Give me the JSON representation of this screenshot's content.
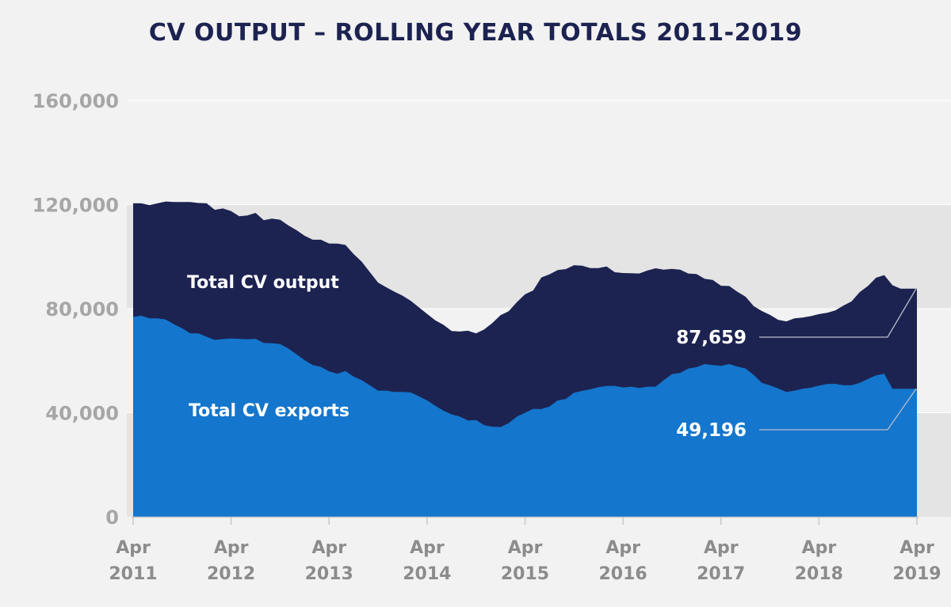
{
  "chart_data": {
    "type": "area",
    "title": "CV OUTPUT – ROLLING YEAR TOTALS 2011-2019",
    "xlabel": "",
    "ylabel": "",
    "ylim": [
      0,
      160000
    ],
    "yticks": [
      0,
      40000,
      80000,
      120000,
      160000
    ],
    "ytick_labels": [
      "0",
      "40,000",
      "80,000",
      "120,000",
      "160,000"
    ],
    "xlim": [
      "2011-04",
      "2019-04"
    ],
    "xticks": [
      {
        "pos": "2011-04",
        "line1": "Apr",
        "line2": "2011"
      },
      {
        "pos": "2012-04",
        "line1": "Apr",
        "line2": "2012"
      },
      {
        "pos": "2013-04",
        "line1": "Apr",
        "line2": "2013"
      },
      {
        "pos": "2014-04",
        "line1": "Apr",
        "line2": "2014"
      },
      {
        "pos": "2015-04",
        "line1": "Apr",
        "line2": "2015"
      },
      {
        "pos": "2016-04",
        "line1": "Apr",
        "line2": "2016"
      },
      {
        "pos": "2017-04",
        "line1": "Apr",
        "line2": "2017"
      },
      {
        "pos": "2018-04",
        "line1": "Apr",
        "line2": "2018"
      },
      {
        "pos": "2019-04",
        "line1": "Apr",
        "line2": "2019"
      }
    ],
    "x": [
      "2011-04",
      "2011-05",
      "2011-06",
      "2011-07",
      "2011-08",
      "2011-09",
      "2011-10",
      "2011-11",
      "2011-12",
      "2012-01",
      "2012-02",
      "2012-03",
      "2012-04",
      "2012-05",
      "2012-06",
      "2012-07",
      "2012-08",
      "2012-09",
      "2012-10",
      "2012-11",
      "2012-12",
      "2013-01",
      "2013-02",
      "2013-03",
      "2013-04",
      "2013-05",
      "2013-06",
      "2013-07",
      "2013-08",
      "2013-09",
      "2013-10",
      "2013-11",
      "2013-12",
      "2014-01",
      "2014-02",
      "2014-03",
      "2014-04",
      "2014-05",
      "2014-06",
      "2014-07",
      "2014-08",
      "2014-09",
      "2014-10",
      "2014-11",
      "2014-12",
      "2015-01",
      "2015-02",
      "2015-03",
      "2015-04",
      "2015-05",
      "2015-06",
      "2015-07",
      "2015-08",
      "2015-09",
      "2015-10",
      "2015-11",
      "2015-12",
      "2016-01",
      "2016-02",
      "2016-03",
      "2016-04",
      "2016-05",
      "2016-06",
      "2016-07",
      "2016-08",
      "2016-09",
      "2016-10",
      "2016-11",
      "2016-12",
      "2017-01",
      "2017-02",
      "2017-03",
      "2017-04",
      "2017-05",
      "2017-06",
      "2017-07",
      "2017-08",
      "2017-09",
      "2017-10",
      "2017-11",
      "2017-12",
      "2018-01",
      "2018-02",
      "2018-03",
      "2018-04",
      "2018-05",
      "2018-06",
      "2018-07",
      "2018-08",
      "2018-09",
      "2018-10",
      "2018-11",
      "2018-12",
      "2019-01",
      "2019-02",
      "2019-03",
      "2019-04"
    ],
    "series": [
      {
        "name": "Total CV output",
        "color": "#1c2351",
        "values": [
          120500,
          120500,
          119800,
          120500,
          121200,
          121000,
          121000,
          121000,
          120600,
          120500,
          118000,
          118500,
          117500,
          115500,
          115800,
          116800,
          114000,
          114600,
          114200,
          112000,
          110200,
          108000,
          106500,
          106500,
          105000,
          105000,
          104500,
          101000,
          98000,
          94000,
          90000,
          88200,
          86500,
          85000,
          83000,
          80500,
          78000,
          75500,
          73800,
          71400,
          71200,
          71500,
          70500,
          72000,
          74500,
          77500,
          79000,
          82500,
          85500,
          87000,
          92000,
          93200,
          94800,
          95200,
          96700,
          96500,
          95600,
          95600,
          96200,
          94000,
          93700,
          93600,
          93500,
          94700,
          95500,
          95000,
          95300,
          95000,
          93500,
          93300,
          91500,
          91000,
          88800,
          88700,
          86500,
          84600,
          81000,
          79100,
          77600,
          75700,
          75100,
          76300,
          76600,
          77100,
          77900,
          78400,
          79300,
          81200,
          82800,
          86400,
          88700,
          91900,
          92900,
          89000,
          87659,
          87659,
          87659
        ]
      },
      {
        "name": "Total CV exports",
        "color": "#1476cc",
        "values": [
          76800,
          77300,
          76300,
          76300,
          75800,
          74000,
          72500,
          70500,
          70500,
          69200,
          68000,
          68300,
          68500,
          68400,
          68200,
          68400,
          66800,
          66700,
          66400,
          64700,
          62500,
          60200,
          58300,
          57600,
          55900,
          55000,
          56000,
          53900,
          52500,
          50500,
          48500,
          48500,
          48000,
          48000,
          47800,
          46300,
          44700,
          42700,
          40800,
          39400,
          38500,
          37000,
          37200,
          35200,
          34600,
          34500,
          36000,
          38500,
          40000,
          41500,
          41400,
          42400,
          44700,
          45300,
          47700,
          48400,
          49000,
          49800,
          50300,
          50300,
          49700,
          50000,
          49500,
          50000,
          50000,
          52500,
          54800,
          55300,
          57000,
          57500,
          58700,
          58300,
          58000,
          58700,
          57700,
          57000,
          54500,
          51500,
          50500,
          49300,
          48000,
          48500,
          49200,
          49600,
          50400,
          51000,
          51100,
          50600,
          50600,
          51500,
          53000,
          54400,
          55000,
          49196,
          49196,
          49196,
          49196
        ]
      }
    ],
    "series_labels": [
      "Total CV output",
      "Total CV exports"
    ],
    "end_values": {
      "output": 87659,
      "exports": 49196
    },
    "end_labels": {
      "output": "87,659",
      "exports": "49,196"
    },
    "grid": true,
    "band_color": "#e4e4e4",
    "grid_color": "#ffffff"
  }
}
